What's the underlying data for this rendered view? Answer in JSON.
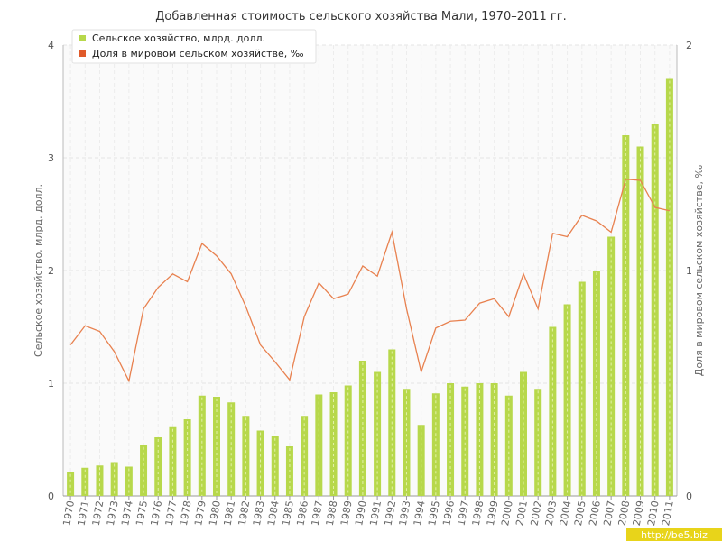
{
  "chart_data": {
    "type": "bar",
    "title": "Добавленная стоимость сельского хозяйства Мали, 1970–2011 гг.",
    "ylabel": "Сельское хозяйство, млрд. долл.",
    "ylabel_right": "Доля в мировом сельском хозяйстве, ‰",
    "ylim": [
      0,
      4
    ],
    "ylim_right": [
      0,
      2
    ],
    "yticks": [
      "0",
      "1",
      "2",
      "3",
      "4"
    ],
    "yticks_right": [
      "0",
      "1",
      "2"
    ],
    "grid": true,
    "legend_position": "top-left",
    "categories": [
      "1970",
      "1971",
      "1972",
      "1973",
      "1974",
      "1975",
      "1976",
      "1977",
      "1978",
      "1979",
      "1980",
      "1981",
      "1982",
      "1983",
      "1984",
      "1985",
      "1986",
      "1987",
      "1988",
      "1989",
      "1990",
      "1991",
      "1992",
      "1993",
      "1994",
      "1995",
      "1996",
      "1997",
      "1998",
      "1999",
      "2000",
      "2001",
      "2002",
      "2003",
      "2004",
      "2005",
      "2006",
      "2007",
      "2008",
      "2009",
      "2010",
      "2011"
    ],
    "series": [
      {
        "name": "Сельское хозяйство, млрд. долл.",
        "type": "bar",
        "axis": "left",
        "color": "#b7d84b",
        "values": [
          0.21,
          0.25,
          0.27,
          0.3,
          0.26,
          0.45,
          0.52,
          0.61,
          0.68,
          0.89,
          0.88,
          0.83,
          0.71,
          0.58,
          0.53,
          0.44,
          0.71,
          0.9,
          0.92,
          0.98,
          1.2,
          1.1,
          1.3,
          0.95,
          0.63,
          0.91,
          1.0,
          0.97,
          1.0,
          1.0,
          0.89,
          1.1,
          0.95,
          1.5,
          1.7,
          1.9,
          2.0,
          2.3,
          3.2,
          3.1,
          3.3,
          3.7
        ]
      },
      {
        "name": "Доля в мировом сельском хозяйстве, ‰",
        "type": "line",
        "axis": "right",
        "color": "#e8814f",
        "values": [
          0.67,
          0.755,
          0.73,
          0.64,
          0.51,
          0.83,
          0.925,
          0.985,
          0.95,
          1.12,
          1.065,
          0.985,
          0.84,
          0.67,
          0.595,
          0.515,
          0.795,
          0.945,
          0.875,
          0.895,
          1.02,
          0.975,
          1.17,
          0.83,
          0.55,
          0.745,
          0.775,
          0.78,
          0.855,
          0.875,
          0.795,
          0.985,
          0.83,
          1.165,
          1.15,
          1.245,
          1.22,
          1.17,
          1.405,
          1.4,
          1.28,
          1.265
        ]
      }
    ]
  },
  "colors": {
    "bar": "#b7d84b",
    "line": "#e8814f",
    "legend_bar_marker": "#b7d84b",
    "legend_line_marker": "#e05a2a",
    "watermark_bg": "#e8d41a"
  },
  "watermark": "http://be5.biz"
}
